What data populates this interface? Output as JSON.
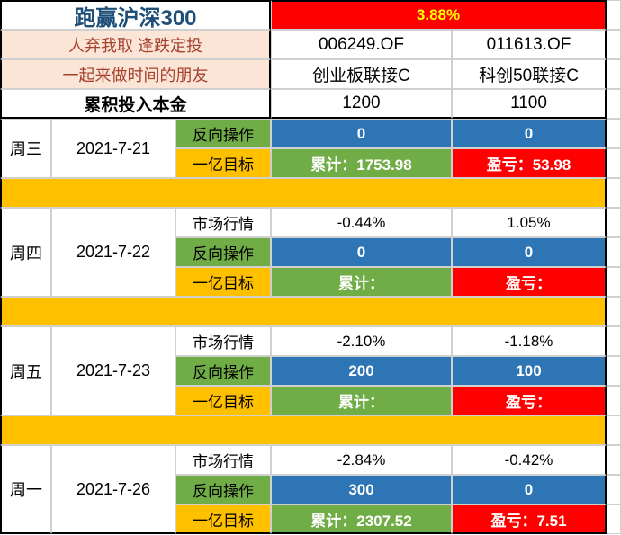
{
  "colors": {
    "red": "#ff0000",
    "blue": "#2e75b6",
    "green": "#70ad47",
    "yellow": "#ffc000",
    "pink": "#fbe5d6",
    "titleColor": "#1f4e79",
    "subColor": "#a6412d"
  },
  "header": {
    "title": "跑赢沪深300",
    "pct": "3.88%",
    "subtitle1": "人弃我取 逢跌定投",
    "fund1code": "006249.OF",
    "fund2code": "011613.OF",
    "subtitle2": "一起来做时间的朋友",
    "fund1name": "创业板联接C",
    "fund2name": "科创50联接C",
    "principalLabel": "累积投入本金",
    "principal1": "1200",
    "principal2": "1100"
  },
  "labels": {
    "market": "市场行情",
    "reverse": "反向操作",
    "target": "一亿目标",
    "cum": "累计：",
    "pl": "盈亏："
  },
  "days": [
    {
      "dayName": "周三",
      "date": "2021-7-21",
      "showMarket": false,
      "market1": "",
      "market2": "",
      "reverse1": "0",
      "reverse2": "0",
      "cum": "累计：1753.98",
      "pl": "盈亏：53.98"
    },
    {
      "dayName": "周四",
      "date": "2021-7-22",
      "showMarket": true,
      "market1": "-0.44%",
      "market2": "1.05%",
      "reverse1": "0",
      "reverse2": "0",
      "cum": "累计：",
      "pl": "盈亏："
    },
    {
      "dayName": "周五",
      "date": "2021-7-23",
      "showMarket": true,
      "market1": "-2.10%",
      "market2": "-1.18%",
      "reverse1": "200",
      "reverse2": "100",
      "cum": "累计：",
      "pl": "盈亏："
    },
    {
      "dayName": "周一",
      "date": "2021-7-26",
      "showMarket": true,
      "market1": "-2.84%",
      "market2": "-0.42%",
      "reverse1": "300",
      "reverse2": "0",
      "cum": "累计：2307.52",
      "pl": "盈亏：7.51"
    }
  ]
}
